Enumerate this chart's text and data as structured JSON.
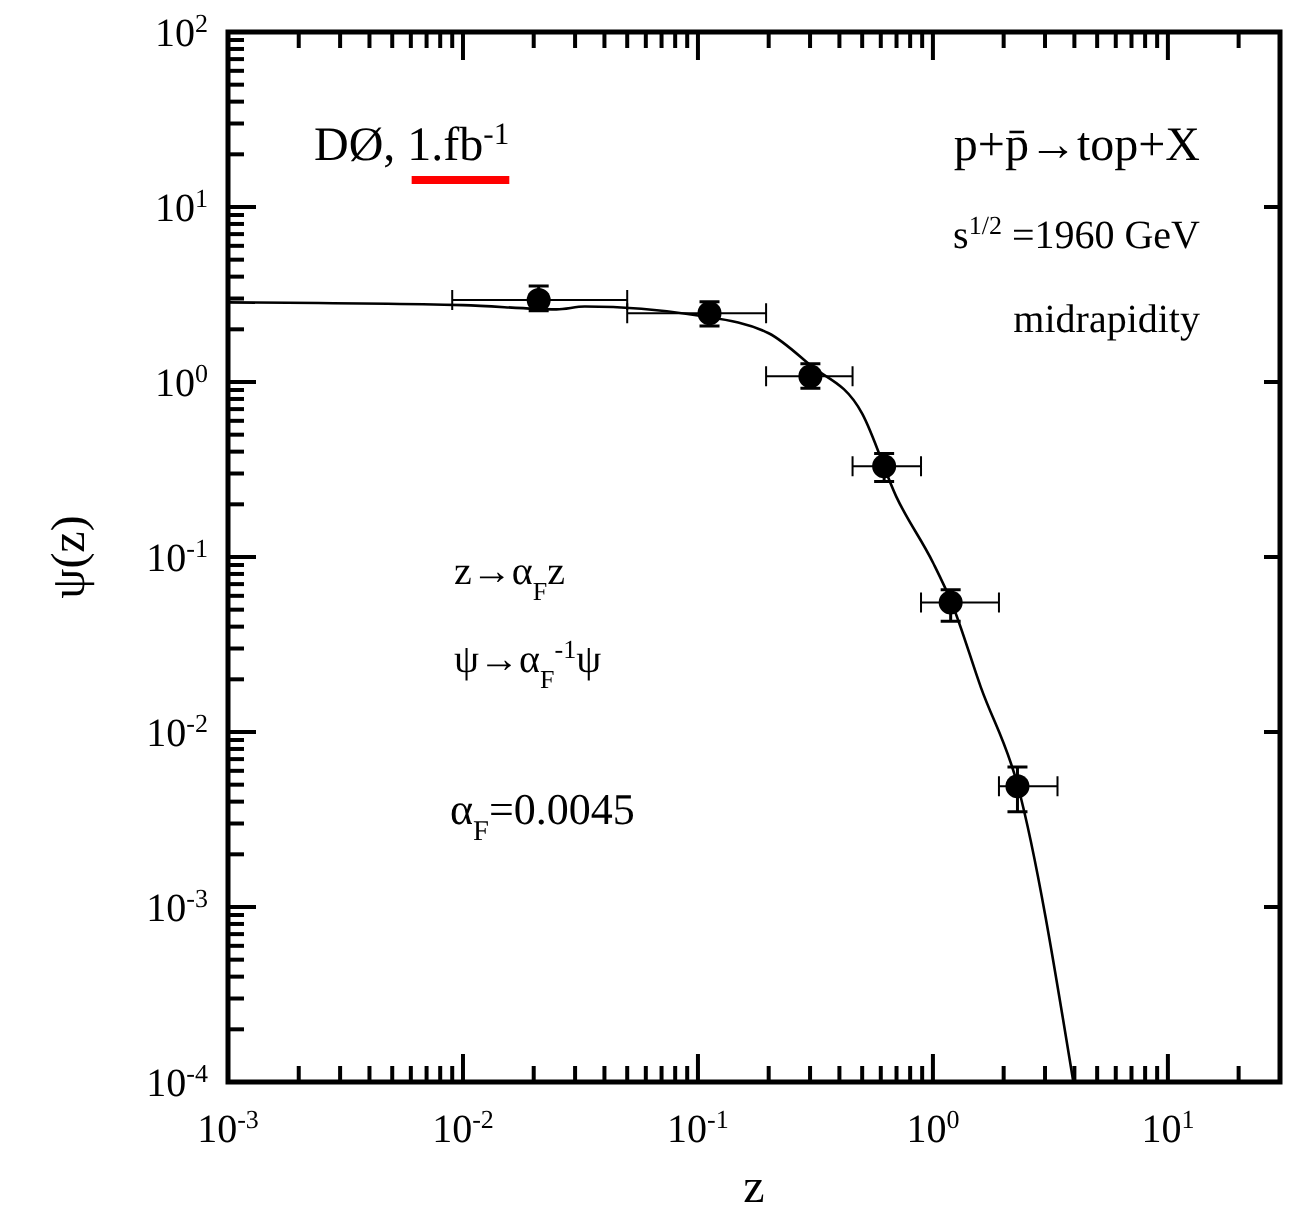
{
  "chart_data": {
    "type": "scatter",
    "xlabel": "z",
    "ylabel": "ψ(z)",
    "log": "xy",
    "grid": false,
    "marker": "circle",
    "xlim": [
      0.001,
      30
    ],
    "xticks": [
      {
        "value": 0.001,
        "label": "10$^{-3}$"
      },
      {
        "value": 0.002,
        "label": null
      },
      {
        "value": 0.003,
        "label": null
      },
      {
        "value": 0.004,
        "label": null
      },
      {
        "value": 0.005,
        "label": null
      },
      {
        "value": 0.006,
        "label": null
      },
      {
        "value": 0.007,
        "label": null
      },
      {
        "value": 0.008,
        "label": null
      },
      {
        "value": 0.009,
        "label": null
      },
      {
        "value": 0.01,
        "label": "10$^{-2}$"
      },
      {
        "value": 0.02,
        "label": null
      },
      {
        "value": 0.03,
        "label": null
      },
      {
        "value": 0.04,
        "label": null
      },
      {
        "value": 0.05,
        "label": null
      },
      {
        "value": 0.06,
        "label": null
      },
      {
        "value": 0.07,
        "label": null
      },
      {
        "value": 0.08,
        "label": null
      },
      {
        "value": 0.09,
        "label": null
      },
      {
        "value": 0.1,
        "label": "10$^{-1}$"
      },
      {
        "value": 0.2,
        "label": null
      },
      {
        "value": 0.3,
        "label": null
      },
      {
        "value": 0.4,
        "label": null
      },
      {
        "value": 0.5,
        "label": null
      },
      {
        "value": 0.6,
        "label": null
      },
      {
        "value": 0.7,
        "label": null
      },
      {
        "value": 0.8,
        "label": null
      },
      {
        "value": 0.9,
        "label": null
      },
      {
        "value": 1,
        "label": "10$^{0}$"
      },
      {
        "value": 2,
        "label": null
      },
      {
        "value": 3,
        "label": null
      },
      {
        "value": 4,
        "label": null
      },
      {
        "value": 5,
        "label": null
      },
      {
        "value": 6,
        "label": null
      },
      {
        "value": 7,
        "label": null
      },
      {
        "value": 8,
        "label": null
      },
      {
        "value": 9,
        "label": null
      },
      {
        "value": 10,
        "label": "10$^{1}$"
      },
      {
        "value": 20,
        "label": null
      },
      {
        "value": 30,
        "label": null
      }
    ],
    "ylim": [
      0.0001,
      100
    ],
    "yticks": [
      {
        "value": 0.0001,
        "label": "10$^{-4}$"
      },
      {
        "value": 0.0002,
        "label": null
      },
      {
        "value": 0.0003,
        "label": null
      },
      {
        "value": 0.0004,
        "label": null
      },
      {
        "value": 0.0005,
        "label": null
      },
      {
        "value": 0.0006,
        "label": null
      },
      {
        "value": 0.0007,
        "label": null
      },
      {
        "value": 0.0008,
        "label": null
      },
      {
        "value": 0.0009,
        "label": null
      },
      {
        "value": 0.001,
        "label": "10$^{-3}$"
      },
      {
        "value": 0.002,
        "label": null
      },
      {
        "value": 0.003,
        "label": null
      },
      {
        "value": 0.004,
        "label": null
      },
      {
        "value": 0.005,
        "label": null
      },
      {
        "value": 0.006,
        "label": null
      },
      {
        "value": 0.007,
        "label": null
      },
      {
        "value": 0.008,
        "label": null
      },
      {
        "value": 0.009,
        "label": null
      },
      {
        "value": 0.01,
        "label": "10$^{-2}$"
      },
      {
        "value": 0.02,
        "label": null
      },
      {
        "value": 0.03,
        "label": null
      },
      {
        "value": 0.04,
        "label": null
      },
      {
        "value": 0.05,
        "label": null
      },
      {
        "value": 0.06,
        "label": null
      },
      {
        "value": 0.07,
        "label": null
      },
      {
        "value": 0.08,
        "label": null
      },
      {
        "value": 0.09,
        "label": null
      },
      {
        "value": 0.1,
        "label": "10$^{-1}$"
      },
      {
        "value": 0.2,
        "label": null
      },
      {
        "value": 0.3,
        "label": null
      },
      {
        "value": 0.4,
        "label": null
      },
      {
        "value": 0.5,
        "label": null
      },
      {
        "value": 0.6,
        "label": null
      },
      {
        "value": 0.7,
        "label": null
      },
      {
        "value": 0.8,
        "label": null
      },
      {
        "value": 0.9,
        "label": null
      },
      {
        "value": 1,
        "label": "10$^{0}$"
      },
      {
        "value": 2,
        "label": null
      },
      {
        "value": 3,
        "label": null
      },
      {
        "value": 4,
        "label": null
      },
      {
        "value": 5,
        "label": null
      },
      {
        "value": 6,
        "label": null
      },
      {
        "value": 7,
        "label": null
      },
      {
        "value": 8,
        "label": null
      },
      {
        "value": 9,
        "label": null
      },
      {
        "value": 10,
        "label": "10$^{1}$"
      },
      {
        "value": 20,
        "label": null
      },
      {
        "value": 30,
        "label": null
      },
      {
        "value": 40,
        "label": null
      },
      {
        "value": 50,
        "label": null
      },
      {
        "value": 60,
        "label": null
      },
      {
        "value": 70,
        "label": null
      },
      {
        "value": 80,
        "label": null
      },
      {
        "value": 90,
        "label": null
      },
      {
        "value": 100,
        "label": "10$^{2}$"
      }
    ],
    "annotations": [
      "DØ, 1.fb$^{-1}$",
      "p+p̄→top+X",
      "s$^{1/2}$ =1960 GeV",
      "midrapidity",
      "z→α$_{F}$z",
      "ψ→α$_{F}$$^{-1}$ψ",
      "α$_{F}$=0.0045"
    ],
    "series": [
      {
        "color": "#000000",
        "x": [
          0.021,
          0.112,
          0.301,
          0.62,
          1.19,
          2.29
        ],
        "values": [
          2.94,
          2.47,
          1.08,
          0.33,
          0.055,
          0.0049
        ],
        "errors": [
          [
            2.55,
            3.54
          ],
          [
            2.09,
            2.87
          ],
          [
            0.92,
            1.27
          ],
          [
            0.27,
            0.39
          ],
          [
            0.043,
            0.065
          ],
          [
            0.0035,
            0.0063
          ]
        ],
        "xerrors": [
          [
            0.009,
            0.05
          ],
          [
            0.05,
            0.195
          ],
          [
            0.195,
            0.455
          ],
          [
            0.455,
            0.89
          ],
          [
            0.89,
            1.91
          ],
          [
            1.91,
            3.39
          ]
        ]
      },
      {
        "type": "line",
        "color": "#000000",
        "line_style": "solid",
        "marker": "none",
        "x": [
          0.001,
          0.01,
          0.025,
          0.033,
          0.1,
          0.2,
          0.3,
          0.5,
          0.7,
          1.0,
          1.2,
          1.6,
          2.3,
          3.96
        ],
        "values": [
          2.85,
          2.75,
          2.6,
          2.7,
          2.4,
          1.9,
          1.25,
          0.66,
          0.22,
          0.093,
          0.055,
          0.018,
          0.0049,
          0.0001
        ]
      }
    ]
  }
}
